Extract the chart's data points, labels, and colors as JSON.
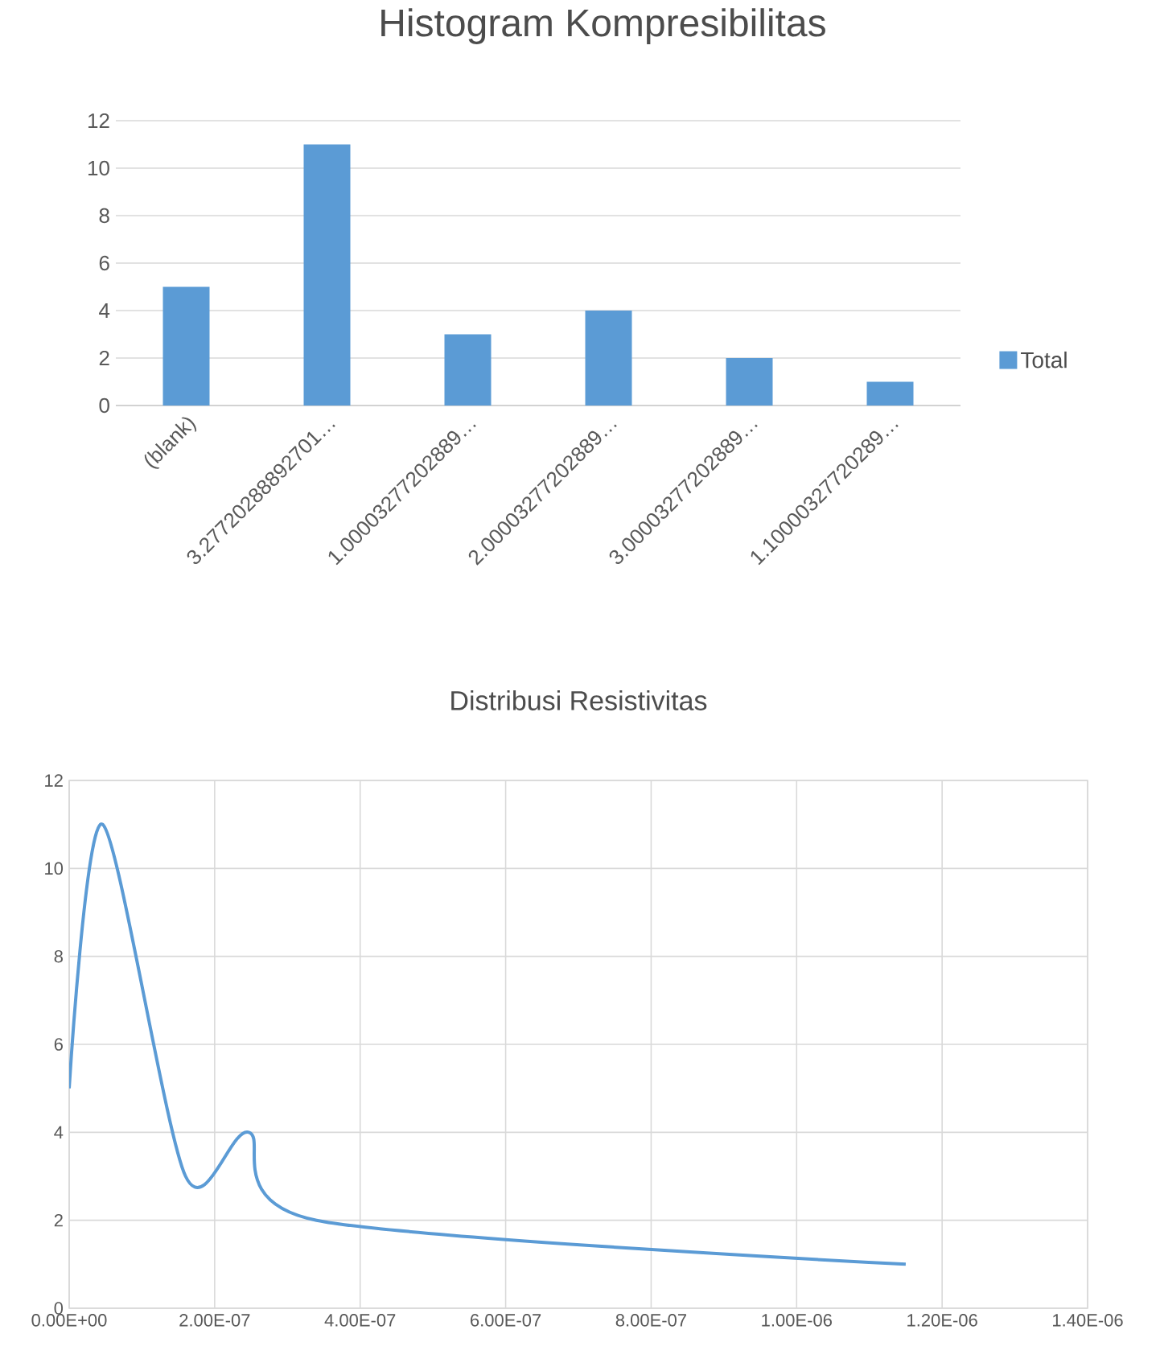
{
  "chart_data": [
    {
      "type": "bar",
      "title": "Histogram Kompresibilitas",
      "categories": [
        "(blank)",
        "3.27720288892701…",
        "1.00003277202889…",
        "2.00003277202889…",
        "3.00003277202889…",
        "1.10000327720289…"
      ],
      "series": [
        {
          "name": "Total",
          "color": "#5b9bd5",
          "values": [
            5,
            11,
            3,
            4,
            2,
            1
          ]
        }
      ],
      "ylim": [
        0,
        12
      ],
      "yticks": [
        0,
        2,
        4,
        6,
        8,
        10,
        12
      ],
      "grid": "y",
      "legend": "right"
    },
    {
      "type": "line",
      "title": "Distribusi Resistivitas",
      "x": [
        0,
        4.6e-08,
        1.6e-07,
        2.47e-07,
        3.4e-07,
        1.15e-06
      ],
      "series": [
        {
          "color": "#5b9bd5",
          "values": [
            5,
            11,
            3,
            4,
            2,
            1
          ]
        }
      ],
      "xlim": [
        0,
        1.4e-06
      ],
      "xticks": [
        {
          "value": 0,
          "label": "0.00E+00"
        },
        {
          "value": 2e-07,
          "label": "2.00E-07"
        },
        {
          "value": 4e-07,
          "label": "4.00E-07"
        },
        {
          "value": 6e-07,
          "label": "6.00E-07"
        },
        {
          "value": 8e-07,
          "label": "8.00E-07"
        },
        {
          "value": 1e-06,
          "label": "1.00E-06"
        },
        {
          "value": 1.2e-06,
          "label": "1.20E-06"
        },
        {
          "value": 1.4e-06,
          "label": "1.40E-06"
        }
      ],
      "ylim": [
        0,
        12
      ],
      "yticks": [
        0,
        2,
        4,
        6,
        8,
        10,
        12
      ],
      "grid": true
    }
  ]
}
